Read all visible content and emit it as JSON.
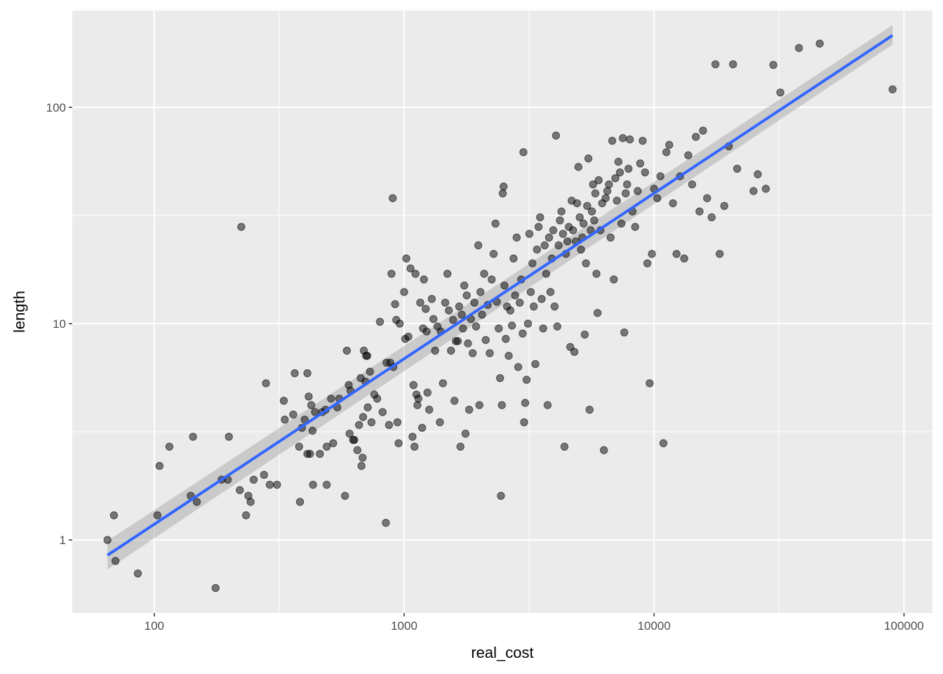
{
  "chart_data": {
    "type": "scatter",
    "title": "",
    "xlabel": "real_cost",
    "ylabel": "length",
    "x_scale": "log10",
    "y_scale": "log10",
    "xlim": [
      47,
      130000
    ],
    "ylim": [
      0.46,
      280
    ],
    "x_ticks": [
      {
        "value": 100,
        "label": "100"
      },
      {
        "value": 1000,
        "label": "1000"
      },
      {
        "value": 10000,
        "label": "10000"
      },
      {
        "value": 100000,
        "label": "100000"
      }
    ],
    "y_ticks": [
      {
        "value": 1,
        "label": "1"
      },
      {
        "value": 10,
        "label": "10"
      },
      {
        "value": 100,
        "label": "100"
      }
    ],
    "grid": true,
    "background": "#ebebeb",
    "grid_color": "#ffffff",
    "point_color": "#000000",
    "point_opacity": 0.5,
    "fit_line": {
      "method": "linear regression on log-log scale",
      "color": "#3366ff",
      "ribbon_color": "#999999",
      "x": [
        65,
        90000
      ],
      "y": [
        0.85,
        215
      ],
      "ribbon_lower": [
        0.73,
        195
      ],
      "ribbon_upper": [
        0.99,
        240
      ]
    },
    "points": [
      [
        65,
        1.0
      ],
      [
        69,
        1.3
      ],
      [
        70,
        0.8
      ],
      [
        86,
        0.7
      ],
      [
        103,
        1.3
      ],
      [
        105,
        2.2
      ],
      [
        115,
        2.7
      ],
      [
        140,
        1.6
      ],
      [
        143,
        3.0
      ],
      [
        148,
        1.5
      ],
      [
        176,
        0.6
      ],
      [
        186,
        1.9
      ],
      [
        197,
        1.9
      ],
      [
        199,
        3.0
      ],
      [
        220,
        1.7
      ],
      [
        223,
        28
      ],
      [
        233,
        1.3
      ],
      [
        238,
        1.6
      ],
      [
        243,
        1.5
      ],
      [
        250,
        1.9
      ],
      [
        275,
        2.0
      ],
      [
        280,
        5.3
      ],
      [
        290,
        1.8
      ],
      [
        310,
        1.8
      ],
      [
        330,
        4.4
      ],
      [
        333,
        3.6
      ],
      [
        360,
        3.8
      ],
      [
        365,
        5.9
      ],
      [
        380,
        2.7
      ],
      [
        383,
        1.5
      ],
      [
        390,
        3.3
      ],
      [
        400,
        3.6
      ],
      [
        410,
        5.9
      ],
      [
        410,
        2.5
      ],
      [
        420,
        2.5
      ],
      [
        415,
        4.6
      ],
      [
        425,
        4.2
      ],
      [
        430,
        3.2
      ],
      [
        432,
        1.8
      ],
      [
        440,
        3.9
      ],
      [
        460,
        2.5
      ],
      [
        470,
        3.9
      ],
      [
        485,
        4.0
      ],
      [
        490,
        2.7
      ],
      [
        490,
        1.8
      ],
      [
        510,
        4.5
      ],
      [
        520,
        2.8
      ],
      [
        540,
        4.1
      ],
      [
        550,
        4.5
      ],
      [
        580,
        1.6
      ],
      [
        590,
        7.5
      ],
      [
        600,
        5.2
      ],
      [
        605,
        3.1
      ],
      [
        610,
        4.9
      ],
      [
        625,
        2.9
      ],
      [
        632,
        2.9
      ],
      [
        650,
        2.6
      ],
      [
        660,
        3.4
      ],
      [
        670,
        5.6
      ],
      [
        675,
        2.2
      ],
      [
        682,
        2.4
      ],
      [
        685,
        3.7
      ],
      [
        690,
        7.5
      ],
      [
        700,
        5.4
      ],
      [
        704,
        7.1
      ],
      [
        712,
        7.1
      ],
      [
        715,
        4.1
      ],
      [
        730,
        6.0
      ],
      [
        740,
        3.5
      ],
      [
        760,
        4.7
      ],
      [
        780,
        4.5
      ],
      [
        800,
        10.2
      ],
      [
        820,
        3.9
      ],
      [
        845,
        1.2
      ],
      [
        850,
        6.6
      ],
      [
        870,
        3.4
      ],
      [
        880,
        6.6
      ],
      [
        890,
        17
      ],
      [
        900,
        38
      ],
      [
        905,
        6.3
      ],
      [
        920,
        12.3
      ],
      [
        930,
        10.4
      ],
      [
        940,
        3.5
      ],
      [
        950,
        2.8
      ],
      [
        960,
        10
      ],
      [
        1000,
        14
      ],
      [
        1010,
        8.5
      ],
      [
        1020,
        20
      ],
      [
        1040,
        8.7
      ],
      [
        1060,
        18
      ],
      [
        1080,
        3.0
      ],
      [
        1090,
        5.2
      ],
      [
        1100,
        2.7
      ],
      [
        1110,
        17
      ],
      [
        1120,
        4.7
      ],
      [
        1130,
        4.2
      ],
      [
        1140,
        4.5
      ],
      [
        1160,
        12.5
      ],
      [
        1180,
        3.3
      ],
      [
        1190,
        9.5
      ],
      [
        1200,
        16
      ],
      [
        1220,
        11.7
      ],
      [
        1230,
        9.2
      ],
      [
        1240,
        4.8
      ],
      [
        1260,
        4.0
      ],
      [
        1290,
        13
      ],
      [
        1310,
        10.5
      ],
      [
        1330,
        7.5
      ],
      [
        1360,
        9.7
      ],
      [
        1390,
        3.5
      ],
      [
        1400,
        9.2
      ],
      [
        1430,
        5.3
      ],
      [
        1460,
        12.5
      ],
      [
        1490,
        17
      ],
      [
        1510,
        11.5
      ],
      [
        1540,
        7.5
      ],
      [
        1570,
        10.4
      ],
      [
        1590,
        4.4
      ],
      [
        1610,
        8.3
      ],
      [
        1640,
        8.3
      ],
      [
        1660,
        12.0
      ],
      [
        1680,
        2.7
      ],
      [
        1700,
        11
      ],
      [
        1720,
        9.5
      ],
      [
        1740,
        15
      ],
      [
        1760,
        3.1
      ],
      [
        1780,
        13.5
      ],
      [
        1800,
        8.1
      ],
      [
        1820,
        4.0
      ],
      [
        1850,
        10.5
      ],
      [
        1880,
        7.3
      ],
      [
        1910,
        12.5
      ],
      [
        1940,
        9.7
      ],
      [
        1980,
        23
      ],
      [
        2000,
        4.2
      ],
      [
        2020,
        14
      ],
      [
        2050,
        11
      ],
      [
        2090,
        17
      ],
      [
        2120,
        8.4
      ],
      [
        2160,
        12.2
      ],
      [
        2200,
        7.3
      ],
      [
        2240,
        16
      ],
      [
        2280,
        21
      ],
      [
        2320,
        29
      ],
      [
        2350,
        12.6
      ],
      [
        2390,
        9.5
      ],
      [
        2420,
        5.6
      ],
      [
        2440,
        1.6
      ],
      [
        2460,
        4.2
      ],
      [
        2480,
        40
      ],
      [
        2500,
        43
      ],
      [
        2520,
        15
      ],
      [
        2550,
        8.5
      ],
      [
        2580,
        12
      ],
      [
        2620,
        7.1
      ],
      [
        2660,
        11.5
      ],
      [
        2700,
        9.8
      ],
      [
        2740,
        20
      ],
      [
        2780,
        13.5
      ],
      [
        2820,
        25
      ],
      [
        2860,
        6.3
      ],
      [
        2900,
        12.5
      ],
      [
        2940,
        16
      ],
      [
        2980,
        9.0
      ],
      [
        3000,
        62
      ],
      [
        3020,
        3.5
      ],
      [
        3050,
        4.3
      ],
      [
        3090,
        5.5
      ],
      [
        3130,
        10
      ],
      [
        3170,
        26
      ],
      [
        3210,
        14
      ],
      [
        3260,
        19
      ],
      [
        3300,
        12
      ],
      [
        3350,
        6.5
      ],
      [
        3400,
        22
      ],
      [
        3450,
        28
      ],
      [
        3500,
        31
      ],
      [
        3550,
        13
      ],
      [
        3600,
        9.5
      ],
      [
        3650,
        23
      ],
      [
        3700,
        17
      ],
      [
        3750,
        4.2
      ],
      [
        3800,
        25
      ],
      [
        3850,
        14
      ],
      [
        3900,
        20
      ],
      [
        3950,
        27
      ],
      [
        4000,
        12
      ],
      [
        4050,
        74
      ],
      [
        4100,
        9.7
      ],
      [
        4150,
        23
      ],
      [
        4200,
        30
      ],
      [
        4260,
        33
      ],
      [
        4320,
        26
      ],
      [
        4380,
        2.7
      ],
      [
        4440,
        21
      ],
      [
        4500,
        24
      ],
      [
        4560,
        28
      ],
      [
        4620,
        7.8
      ],
      [
        4680,
        37
      ],
      [
        4740,
        27
      ],
      [
        4800,
        7.4
      ],
      [
        4860,
        24
      ],
      [
        4920,
        36
      ],
      [
        4980,
        53
      ],
      [
        5040,
        31
      ],
      [
        5100,
        22
      ],
      [
        5160,
        25
      ],
      [
        5220,
        29
      ],
      [
        5280,
        8.9
      ],
      [
        5340,
        19
      ],
      [
        5400,
        35
      ],
      [
        5460,
        58
      ],
      [
        5520,
        4.0
      ],
      [
        5580,
        27
      ],
      [
        5640,
        33
      ],
      [
        5700,
        44
      ],
      [
        5760,
        30
      ],
      [
        5820,
        40
      ],
      [
        5880,
        17
      ],
      [
        5940,
        11.2
      ],
      [
        6000,
        46
      ],
      [
        6100,
        27
      ],
      [
        6200,
        36
      ],
      [
        6300,
        2.6
      ],
      [
        6400,
        38
      ],
      [
        6500,
        41
      ],
      [
        6600,
        44
      ],
      [
        6700,
        25
      ],
      [
        6800,
        70
      ],
      [
        6900,
        16
      ],
      [
        7000,
        47
      ],
      [
        7100,
        37
      ],
      [
        7200,
        56
      ],
      [
        7300,
        50
      ],
      [
        7400,
        29
      ],
      [
        7500,
        72
      ],
      [
        7600,
        9.1
      ],
      [
        7700,
        40
      ],
      [
        7800,
        44
      ],
      [
        7900,
        52
      ],
      [
        8000,
        71
      ],
      [
        8200,
        33
      ],
      [
        8400,
        28
      ],
      [
        8600,
        41
      ],
      [
        8800,
        55
      ],
      [
        9000,
        70
      ],
      [
        9200,
        50
      ],
      [
        9400,
        19
      ],
      [
        9600,
        5.3
      ],
      [
        9800,
        21
      ],
      [
        10000,
        42
      ],
      [
        10300,
        38
      ],
      [
        10600,
        48
      ],
      [
        10900,
        2.8
      ],
      [
        11200,
        62
      ],
      [
        11500,
        67
      ],
      [
        11900,
        36
      ],
      [
        12300,
        21
      ],
      [
        12700,
        48
      ],
      [
        13200,
        20
      ],
      [
        13700,
        60
      ],
      [
        14200,
        44
      ],
      [
        14700,
        73
      ],
      [
        15200,
        33
      ],
      [
        15700,
        78
      ],
      [
        16300,
        38
      ],
      [
        17000,
        31
      ],
      [
        17600,
        158
      ],
      [
        18300,
        21
      ],
      [
        19100,
        35
      ],
      [
        19900,
        66
      ],
      [
        20700,
        158
      ],
      [
        21500,
        52
      ],
      [
        25000,
        41
      ],
      [
        26000,
        49
      ],
      [
        28000,
        42
      ],
      [
        30000,
        157
      ],
      [
        32000,
        117
      ],
      [
        38000,
        188
      ],
      [
        46000,
        197
      ],
      [
        90000,
        121
      ]
    ]
  }
}
